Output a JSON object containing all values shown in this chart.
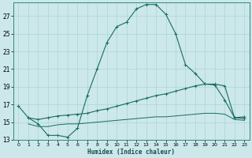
{
  "xlabel": "Humidex (Indice chaleur)",
  "bg_color": "#cce8ea",
  "line_color": "#1a6b60",
  "grid_color": "#aad4d8",
  "xlim": [
    -0.5,
    23.5
  ],
  "ylim": [
    13,
    28.5
  ],
  "yticks": [
    13,
    15,
    17,
    19,
    21,
    23,
    25,
    27
  ],
  "xticks": [
    0,
    1,
    2,
    3,
    4,
    5,
    6,
    7,
    8,
    9,
    10,
    11,
    12,
    13,
    14,
    15,
    16,
    17,
    18,
    19,
    20,
    21,
    22,
    23
  ],
  "curve1_x": [
    0,
    1,
    2,
    3,
    4,
    5,
    6,
    7,
    8,
    9,
    10,
    11,
    12,
    13,
    14,
    15,
    16,
    17,
    18,
    19,
    20,
    21,
    22,
    23
  ],
  "curve1_y": [
    16.8,
    15.5,
    14.8,
    13.5,
    13.5,
    13.3,
    14.3,
    18.0,
    21.0,
    24.0,
    25.8,
    26.3,
    27.8,
    28.3,
    28.3,
    27.2,
    25.0,
    21.5,
    20.5,
    19.3,
    19.2,
    17.5,
    15.5,
    15.6
  ],
  "curve2_x": [
    1,
    2,
    3,
    4,
    5,
    6,
    7,
    8,
    9,
    10,
    11,
    12,
    13,
    14,
    15,
    16,
    17,
    18,
    19,
    20,
    21,
    22,
    23
  ],
  "curve2_y": [
    15.5,
    15.3,
    15.5,
    15.7,
    15.8,
    15.9,
    16.0,
    16.3,
    16.5,
    16.8,
    17.1,
    17.4,
    17.7,
    18.0,
    18.2,
    18.5,
    18.8,
    19.1,
    19.3,
    19.3,
    19.1,
    15.5,
    15.4
  ],
  "curve3_x": [
    1,
    2,
    3,
    4,
    5,
    6,
    7,
    8,
    9,
    10,
    11,
    12,
    13,
    14,
    15,
    16,
    17,
    18,
    19,
    20,
    21,
    22,
    23
  ],
  "curve3_y": [
    14.8,
    14.5,
    14.5,
    14.7,
    14.8,
    14.8,
    14.9,
    15.0,
    15.1,
    15.2,
    15.3,
    15.4,
    15.5,
    15.6,
    15.6,
    15.7,
    15.8,
    15.9,
    16.0,
    16.0,
    15.9,
    15.3,
    15.2
  ]
}
